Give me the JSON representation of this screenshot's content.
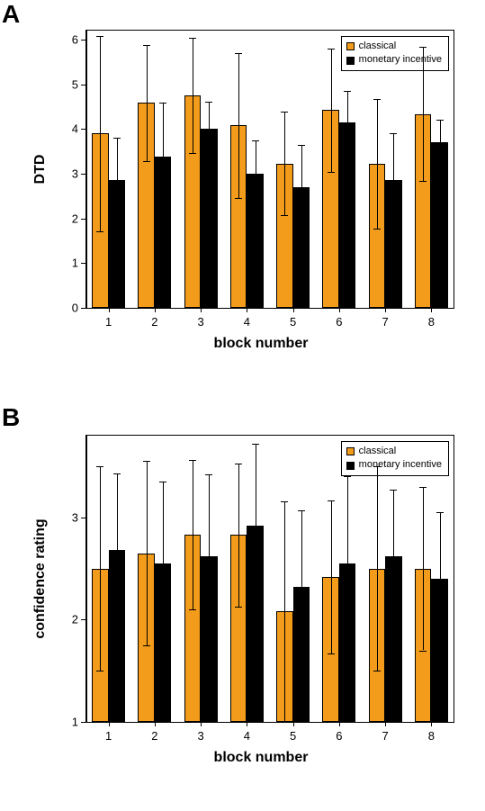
{
  "panelA": {
    "label": "A",
    "type": "bar",
    "ylabel": "DTD",
    "xlabel": "block number",
    "categories": [
      "1",
      "2",
      "3",
      "4",
      "5",
      "6",
      "7",
      "8"
    ],
    "series": [
      {
        "name": "classical",
        "color": "#f39b1a",
        "values": [
          3.9,
          4.58,
          4.75,
          4.08,
          3.23,
          4.42,
          3.23,
          4.33
        ],
        "err_lo": [
          2.18,
          1.3,
          1.28,
          1.62,
          1.15,
          1.38,
          1.45,
          1.5
        ],
        "err_hi": [
          2.18,
          1.3,
          1.28,
          1.62,
          1.15,
          1.38,
          1.45,
          1.5
        ]
      },
      {
        "name": "monetary incentive",
        "color": "#000000",
        "values": [
          2.85,
          3.38,
          4.0,
          3.0,
          2.7,
          4.15,
          2.85,
          3.7
        ],
        "err_lo": [
          0.95,
          1.2,
          0.6,
          0.75,
          0.95,
          0.7,
          1.05,
          0.5
        ],
        "err_hi": [
          0.95,
          1.2,
          0.6,
          0.75,
          0.95,
          0.7,
          1.05,
          0.5
        ]
      }
    ],
    "ylim": [
      0,
      6.2
    ],
    "yticks": [
      0,
      1,
      2,
      3,
      4,
      5,
      6
    ],
    "legend": {
      "entries": [
        "classical",
        "monetary incentive"
      ]
    },
    "bar_width": 0.36,
    "label_fontsize": 16,
    "tick_fontsize": 13,
    "background_color": "#ffffff"
  },
  "panelB": {
    "label": "B",
    "type": "bar",
    "ylabel": "confidence rating",
    "xlabel": "block number",
    "categories": [
      "1",
      "2",
      "3",
      "4",
      "5",
      "6",
      "7",
      "8"
    ],
    "series": [
      {
        "name": "classical",
        "color": "#f39b1a",
        "values": [
          2.5,
          2.65,
          2.83,
          2.83,
          2.08,
          2.42,
          2.5,
          2.5
        ],
        "err_lo": [
          1.0,
          0.9,
          0.73,
          0.7,
          1.08,
          0.75,
          1.0,
          0.8
        ],
        "err_hi": [
          1.0,
          0.9,
          0.73,
          0.7,
          1.08,
          0.75,
          1.0,
          0.8
        ]
      },
      {
        "name": "monetary incentive",
        "color": "#000000",
        "values": [
          2.68,
          2.55,
          2.62,
          2.92,
          2.32,
          2.55,
          2.62,
          2.4
        ],
        "err_lo": [
          0.75,
          0.8,
          0.8,
          0.8,
          0.75,
          0.85,
          0.65,
          0.65
        ],
        "err_hi": [
          0.75,
          0.8,
          0.8,
          0.8,
          0.75,
          0.85,
          0.65,
          0.65
        ]
      }
    ],
    "ylim": [
      1,
      3.8
    ],
    "yticks": [
      1,
      2,
      3
    ],
    "legend": {
      "entries": [
        "classical",
        "monetary incentive"
      ]
    },
    "bar_width": 0.36,
    "label_fontsize": 16,
    "tick_fontsize": 13,
    "background_color": "#ffffff"
  }
}
